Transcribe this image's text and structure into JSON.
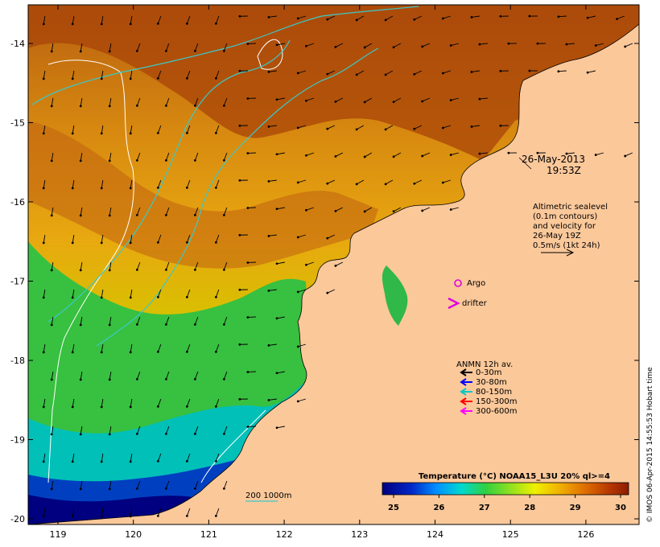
{
  "axes": {
    "lon_ticks": [
      "119",
      "120",
      "121",
      "122",
      "123",
      "124",
      "125",
      "126"
    ],
    "lat_ticks": [
      "-14",
      "-15",
      "-16",
      "-17",
      "-18",
      "-19",
      "-20"
    ]
  },
  "overlay": {
    "date": "26-May-2013",
    "time": "19:53Z",
    "sealevel_lines": [
      "Altimetric sealevel",
      "(0.1m contours)",
      "and velocity for",
      "26-May 19Z",
      "0.5m/s (1kt 24h)"
    ],
    "argo_label": "Argo",
    "drifter_label": "drifter",
    "depth_scale_label": "200  1000m"
  },
  "anmn_legend": {
    "title": "ANMN 12h av.",
    "items": [
      {
        "label": "0-30m",
        "color": "#000000"
      },
      {
        "label": "30-80m",
        "color": "#0000ff"
      },
      {
        "label": "80-150m",
        "color": "#00c8c8"
      },
      {
        "label": "150-300m",
        "color": "#ff0000"
      },
      {
        "label": "300-600m",
        "color": "#ff00ff"
      }
    ]
  },
  "colorbar": {
    "title": "Temperature (°C) NOAA15_L3U 20% ql>=4",
    "ticks": [
      "25",
      "26",
      "27",
      "28",
      "29",
      "30"
    ]
  },
  "credit": "© IMOS 06-Apr-2015 14:55:53 Hobart time",
  "colors": {
    "land": "#fbc89a",
    "contour": "#3cc8c8",
    "shelf_200m": "#ffffff",
    "argo": "#e000e0",
    "drifter": "#e000e0"
  }
}
